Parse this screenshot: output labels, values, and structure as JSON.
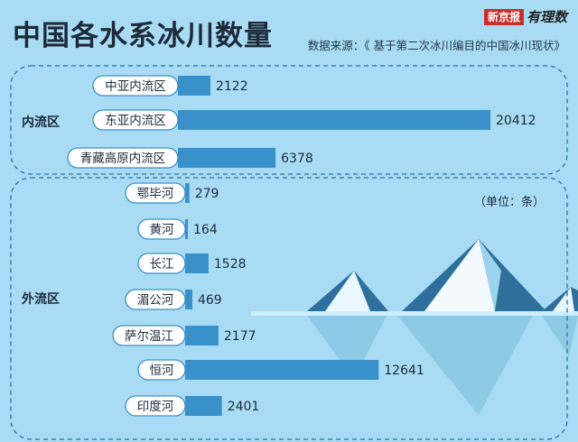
{
  "header": {
    "title": "中国各水系冰川数量",
    "source": "数据来源：《 基于第二次冰川编目的中国冰川现状》",
    "logo_main": "新京报",
    "logo_script": "有理数"
  },
  "unit_note": "（单位：条）",
  "colors": {
    "background": "#a9dcf4",
    "bar": "#3a90c8",
    "label_border": "#3a90c8",
    "text": "#1c2a3a"
  },
  "chart_data": {
    "type": "bar",
    "orientation": "horizontal",
    "title": "中国各水系冰川数量",
    "unit": "条",
    "groups": [
      {
        "name": "内流区",
        "categories": [
          "中亚内流区",
          "东亚内流区",
          "青藏高原内流区"
        ],
        "values": [
          2122,
          20412,
          6378
        ]
      },
      {
        "name": "外流区",
        "categories": [
          "鄂毕河",
          "黄河",
          "长江",
          "湄公河",
          "萨尔温江",
          "恒河",
          "印度河"
        ],
        "values": [
          279,
          164,
          1528,
          469,
          2177,
          12641,
          2401
        ]
      }
    ]
  }
}
